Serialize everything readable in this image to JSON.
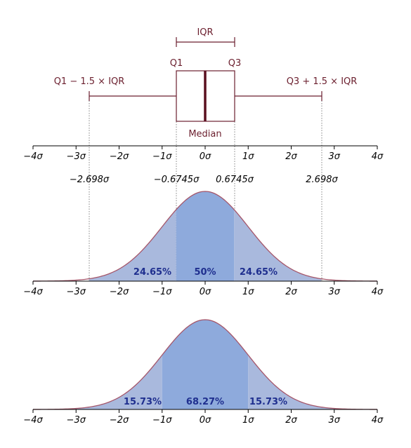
{
  "boxplot": {
    "iqr_label": "IQR",
    "q1_label": "Q1",
    "q3_label": "Q3",
    "median_label": "Median",
    "lower_whisker_label": "Q1 − 1.5 × IQR",
    "upper_whisker_label": "Q3 + 1.5 × IQR"
  },
  "axis_ticks": [
    "−4σ",
    "−3σ",
    "−2σ",
    "−1σ",
    "0σ",
    "1σ",
    "2σ",
    "3σ",
    "4σ"
  ],
  "quartile_values": {
    "lower_whisker": "−2.698σ",
    "q1": "−0.6745σ",
    "q3": "0.6745σ",
    "upper_whisker": "2.698σ"
  },
  "panel_iqr": {
    "left_pct": "24.65%",
    "center_pct": "50%",
    "right_pct": "24.65%"
  },
  "panel_sigma": {
    "left_pct": "15.73%",
    "center_pct": "68.27%",
    "right_pct": "15.73%"
  },
  "colors": {
    "curve": "#a5566a",
    "fill_light": "#a9b9dd",
    "fill_dark": "#8eaadc",
    "box_stroke": "#6b1f2e",
    "median_line": "#5a0f1f",
    "pct_text": "#1f2f8f"
  },
  "chart_data": [
    {
      "type": "area",
      "series": [
        {
          "values": "standard normal density"
        }
      ],
      "x_range": [
        -4,
        4
      ],
      "shaded_regions": [
        {
          "from": -2.698,
          "to": -0.6745,
          "value": 24.65
        },
        {
          "from": -0.6745,
          "to": 0.6745,
          "value": 50
        },
        {
          "from": 0.6745,
          "to": 2.698,
          "value": 24.65
        }
      ]
    },
    {
      "type": "area",
      "series": [
        {
          "values": "standard normal density"
        }
      ],
      "x_range": [
        -4,
        4
      ],
      "shaded_regions": [
        {
          "from": -4,
          "to": -1,
          "value": 15.73
        },
        {
          "from": -1,
          "to": 1,
          "value": 68.27
        },
        {
          "from": 1,
          "to": 4,
          "value": 15.73
        }
      ]
    }
  ]
}
